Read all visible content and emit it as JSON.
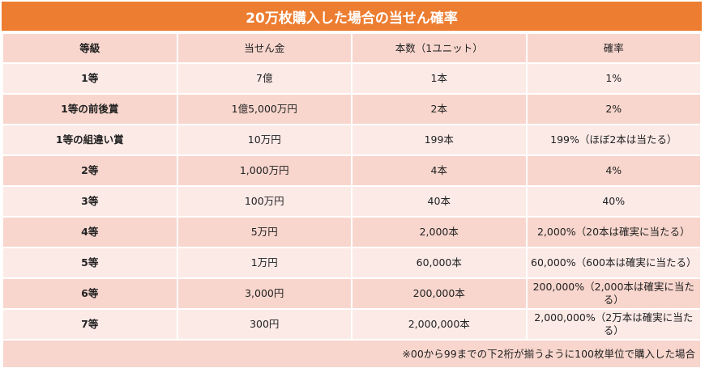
{
  "title": "20万枚購入した場合の当せん確率",
  "colors": {
    "header": "#ED7D31",
    "row_dark": "#F8D6CD",
    "row_light": "#FCEAE7"
  },
  "columns": [
    "等級",
    "当せん金",
    "本数（1ユニット）",
    "確率"
  ],
  "rows": [
    {
      "grade": "1等",
      "prize": "7億",
      "count": "1本",
      "probability": "1%"
    },
    {
      "grade": "1等の前後賞",
      "prize": "1億5,000万円",
      "count": "2本",
      "probability": "2%"
    },
    {
      "grade": "1等の組違い賞",
      "prize": "10万円",
      "count": "199本",
      "probability": "199%（ほぼ2本は当たる）"
    },
    {
      "grade": "2等",
      "prize": "1,000万円",
      "count": "4本",
      "probability": "4%"
    },
    {
      "grade": "3等",
      "prize": "100万円",
      "count": "40本",
      "probability": "40%"
    },
    {
      "grade": "4等",
      "prize": "5万円",
      "count": "2,000本",
      "probability": "2,000%（20本は確実に当たる）"
    },
    {
      "grade": "5等",
      "prize": "1万円",
      "count": "60,000本",
      "probability": "60,000%（600本は確実に当たる）"
    },
    {
      "grade": "6等",
      "prize": "3,000円",
      "count": "200,000本",
      "probability": "200,000%（2,000本は確実に当たる）"
    },
    {
      "grade": "7等",
      "prize": "300円",
      "count": "2,000,000本",
      "probability": "2,000,000%（2万本は確実に当たる）"
    }
  ],
  "footnote": "※00から99までの下2桁が揃うように100枚単位で購入した場合"
}
